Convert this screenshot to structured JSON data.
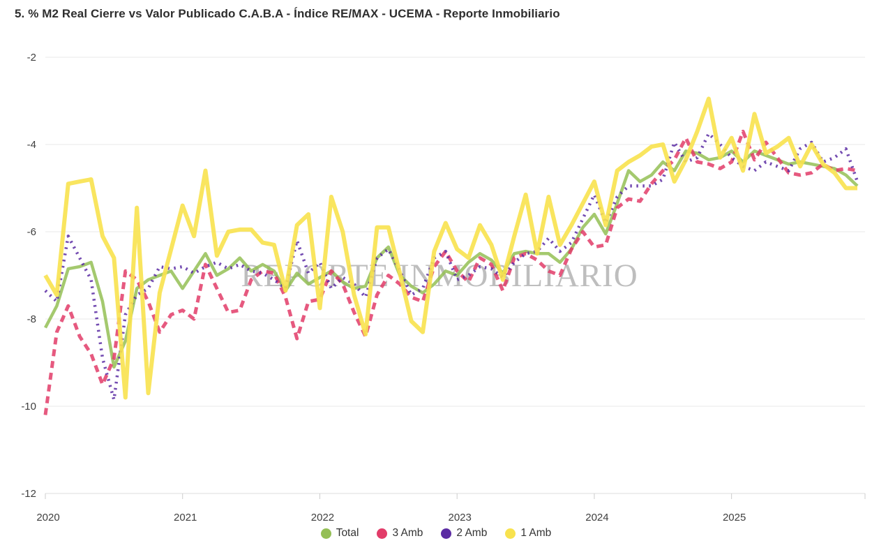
{
  "title": "5. % M2 Real Cierre vs Valor Publicado C.A.B.A - Índice RE/MAX - UCEMA - Reporte Inmobiliario",
  "watermark": "REPORTE INMOBILIARIO",
  "colors": {
    "total": "#94bf55",
    "amb3": "#e23c69",
    "amb2": "#5b2ba3",
    "amb1": "#f8e24e",
    "grid": "#e9e9e9",
    "axis_text": "#3f3f3f",
    "watermark": "#8f8f8f"
  },
  "legend": [
    {
      "label": "Total",
      "color": "#94bf55"
    },
    {
      "label": "3 Amb",
      "color": "#e23c69"
    },
    {
      "label": "2 Amb",
      "color": "#5b2ba3"
    },
    {
      "label": "1 Amb",
      "color": "#f8e24e"
    }
  ],
  "chart_data": {
    "type": "line",
    "title": "5. % M2 Real Cierre vs Valor Publicado C.A.B.A - Índice RE/MAX - UCEMA - Reporte Inmobiliario",
    "x_unit": "monthly, Jan 2020 - Dec 2025",
    "x_labels": [
      "2020",
      "2021",
      "2022",
      "2023",
      "2024",
      "2025"
    ],
    "y_ticks": [
      -2,
      -4,
      -6,
      -8,
      -10,
      -12
    ],
    "ylim": [
      -12,
      -2
    ],
    "grid": "horizontal-only",
    "legend_position": "bottom-center",
    "series": [
      {
        "name": "Total",
        "color": "#94bf55",
        "style": "solid",
        "values": [
          -8.2,
          -7.7,
          -6.85,
          -6.8,
          -6.7,
          -7.6,
          -9.1,
          -8.5,
          -7.3,
          -7.1,
          -7.0,
          -6.9,
          -7.3,
          -6.9,
          -6.5,
          -7.0,
          -6.85,
          -6.6,
          -6.9,
          -6.75,
          -6.9,
          -7.35,
          -6.95,
          -7.2,
          -7.05,
          -6.9,
          -7.15,
          -7.3,
          -7.25,
          -6.6,
          -6.35,
          -7.0,
          -7.25,
          -7.4,
          -7.2,
          -6.9,
          -7.0,
          -6.7,
          -6.5,
          -6.65,
          -6.95,
          -6.5,
          -6.45,
          -6.5,
          -6.5,
          -6.7,
          -6.4,
          -5.9,
          -5.6,
          -6.05,
          -5.35,
          -4.6,
          -4.85,
          -4.7,
          -4.4,
          -4.6,
          -4.15,
          -4.2,
          -4.35,
          -4.3,
          -4.15,
          -4.4,
          -4.15,
          -4.25,
          -4.35,
          -4.45,
          -4.4,
          -4.45,
          -4.5,
          -4.55,
          -4.7,
          -4.95
        ]
      },
      {
        "name": "3 Amb",
        "color": "#e23c69",
        "style": "dashed",
        "values": [
          -10.2,
          -8.3,
          -7.7,
          -8.4,
          -8.8,
          -9.5,
          -8.9,
          -6.9,
          -7.1,
          -7.6,
          -8.3,
          -7.9,
          -7.8,
          -8.0,
          -6.75,
          -7.3,
          -7.85,
          -7.8,
          -7.1,
          -6.9,
          -6.95,
          -7.5,
          -8.45,
          -7.6,
          -7.55,
          -6.9,
          -7.2,
          -7.85,
          -8.4,
          -7.45,
          -7.0,
          -7.2,
          -7.5,
          -7.6,
          -6.8,
          -6.45,
          -6.9,
          -7.15,
          -6.6,
          -6.75,
          -7.35,
          -6.6,
          -6.5,
          -6.65,
          -6.9,
          -7.0,
          -6.4,
          -6.0,
          -6.35,
          -6.3,
          -5.45,
          -5.25,
          -5.3,
          -4.9,
          -4.6,
          -4.35,
          -3.85,
          -4.4,
          -4.45,
          -4.55,
          -4.4,
          -3.7,
          -4.35,
          -3.95,
          -4.3,
          -4.65,
          -4.7,
          -4.65,
          -4.45,
          -4.6,
          -4.55,
          -4.6
        ]
      },
      {
        "name": "2 Amb",
        "color": "#5b2ba3",
        "style": "dotted",
        "values": [
          -7.35,
          -7.6,
          -6.1,
          -6.6,
          -7.1,
          -8.9,
          -9.85,
          -7.9,
          -7.45,
          -7.3,
          -6.8,
          -6.85,
          -6.8,
          -6.95,
          -6.8,
          -6.7,
          -6.85,
          -6.75,
          -6.9,
          -6.95,
          -7.1,
          -7.3,
          -6.2,
          -6.95,
          -6.7,
          -7.3,
          -7.05,
          -7.2,
          -7.5,
          -6.6,
          -6.4,
          -6.9,
          -7.45,
          -7.3,
          -6.6,
          -6.45,
          -7.1,
          -7.0,
          -6.8,
          -6.85,
          -7.05,
          -6.7,
          -6.5,
          -6.45,
          -6.15,
          -6.45,
          -6.25,
          -5.7,
          -5.15,
          -5.8,
          -5.2,
          -4.95,
          -4.95,
          -4.95,
          -4.8,
          -3.95,
          -4.4,
          -4.3,
          -3.75,
          -4.0,
          -4.3,
          -4.5,
          -4.6,
          -4.4,
          -4.5,
          -4.6,
          -4.1,
          -3.95,
          -4.4,
          -4.3,
          -4.1,
          -4.85
        ]
      },
      {
        "name": "1 Amb",
        "color": "#f8e24e",
        "style": "solid",
        "values": [
          -7.0,
          -7.45,
          -4.9,
          -4.85,
          -4.8,
          -6.1,
          -6.6,
          -9.8,
          -5.45,
          -9.7,
          -7.4,
          -6.4,
          -5.4,
          -6.1,
          -4.6,
          -6.55,
          -6.0,
          -5.95,
          -5.95,
          -6.25,
          -6.3,
          -7.35,
          -5.85,
          -5.6,
          -7.75,
          -5.2,
          -6.0,
          -7.45,
          -8.35,
          -5.9,
          -5.9,
          -6.95,
          -8.05,
          -8.3,
          -6.45,
          -5.8,
          -6.4,
          -6.6,
          -5.85,
          -6.3,
          -7.1,
          -6.1,
          -5.15,
          -6.5,
          -5.2,
          -6.3,
          -5.85,
          -5.35,
          -4.85,
          -5.85,
          -4.6,
          -4.4,
          -4.25,
          -4.05,
          -4.0,
          -4.85,
          -4.35,
          -3.7,
          -2.95,
          -4.3,
          -3.85,
          -4.6,
          -3.3,
          -4.2,
          -4.05,
          -3.85,
          -4.5,
          -4.0,
          -4.45,
          -4.65,
          -5.0,
          -5.0
        ]
      }
    ]
  }
}
